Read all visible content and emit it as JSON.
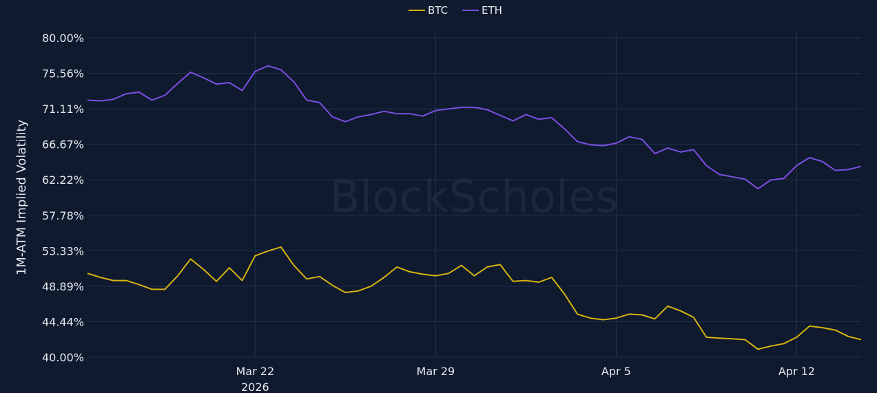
{
  "chart_data": {
    "type": "line",
    "ylabel": "1M-ATM Implied Volatility",
    "xlabel": "",
    "watermark": "BlockScholes",
    "ylim": [
      40,
      80
    ],
    "yticks": [
      "40.00%",
      "44.44%",
      "48.89%",
      "53.33%",
      "57.78%",
      "62.22%",
      "66.67%",
      "71.11%",
      "75.56%",
      "80.00%"
    ],
    "xlim": [
      "2026-03-15 12:00",
      "2026-04-14 12:00"
    ],
    "xticks": [
      {
        "date": "2026-03-22 00:00",
        "label": "Mar 22",
        "sublabel": "2026"
      },
      {
        "date": "2026-03-29 00:00",
        "label": "Mar 29"
      },
      {
        "date": "2026-04-05 00:00",
        "label": "Apr 5"
      },
      {
        "date": "2026-04-12 00:00",
        "label": "Apr 12"
      }
    ],
    "grid": true,
    "legend_position": "top-center",
    "background": "#0f1a2e",
    "x": [
      "2026-03-15 12:00",
      "2026-03-16 00:00",
      "2026-03-16 12:00",
      "2026-03-17 00:00",
      "2026-03-17 12:00",
      "2026-03-18 00:00",
      "2026-03-18 12:00",
      "2026-03-19 00:00",
      "2026-03-19 12:00",
      "2026-03-20 00:00",
      "2026-03-20 12:00",
      "2026-03-21 00:00",
      "2026-03-21 12:00",
      "2026-03-22 00:00",
      "2026-03-22 12:00",
      "2026-03-23 00:00",
      "2026-03-23 12:00",
      "2026-03-24 00:00",
      "2026-03-24 12:00",
      "2026-03-25 00:00",
      "2026-03-25 12:00",
      "2026-03-26 00:00",
      "2026-03-26 12:00",
      "2026-03-27 00:00",
      "2026-03-27 12:00",
      "2026-03-28 00:00",
      "2026-03-28 12:00",
      "2026-03-29 00:00",
      "2026-03-29 12:00",
      "2026-03-30 00:00",
      "2026-03-30 12:00",
      "2026-03-31 00:00",
      "2026-03-31 12:00",
      "2026-04-01 00:00",
      "2026-04-01 12:00",
      "2026-04-02 00:00",
      "2026-04-02 12:00",
      "2026-04-03 00:00",
      "2026-04-03 12:00",
      "2026-04-04 00:00",
      "2026-04-04 12:00",
      "2026-04-05 00:00",
      "2026-04-05 12:00",
      "2026-04-06 00:00",
      "2026-04-06 12:00",
      "2026-04-07 00:00",
      "2026-04-07 12:00",
      "2026-04-08 00:00",
      "2026-04-08 12:00",
      "2026-04-09 00:00",
      "2026-04-09 12:00",
      "2026-04-10 00:00",
      "2026-04-10 12:00",
      "2026-04-11 00:00",
      "2026-04-11 12:00",
      "2026-04-12 00:00",
      "2026-04-12 12:00",
      "2026-04-13 00:00",
      "2026-04-13 12:00",
      "2026-04-14 00:00",
      "2026-04-14 12:00"
    ],
    "series": [
      {
        "name": "BTC",
        "color": "#d9b310",
        "values": [
          50.5,
          50.0,
          49.6,
          49.6,
          49.1,
          48.5,
          48.5,
          50.2,
          52.3,
          51.0,
          49.5,
          51.2,
          49.6,
          52.7,
          53.3,
          53.8,
          51.5,
          49.8,
          50.1,
          49.0,
          48.1,
          48.3,
          48.9,
          50.0,
          51.3,
          50.7,
          50.4,
          50.2,
          50.5,
          51.5,
          50.2,
          51.3,
          51.6,
          49.5,
          49.6,
          49.4,
          50.0,
          47.9,
          45.4,
          44.9,
          44.7,
          44.9,
          45.4,
          45.3,
          44.8,
          46.4,
          45.8,
          45.0,
          42.5,
          42.4,
          42.3,
          42.2,
          41.0,
          41.4,
          41.7,
          42.5,
          43.9,
          43.7,
          43.4,
          42.6,
          42.2
        ]
      },
      {
        "name": "ETH",
        "color": "#7b4fe3",
        "values": [
          72.2,
          72.1,
          72.3,
          73.0,
          73.2,
          72.2,
          72.8,
          74.3,
          75.7,
          75.0,
          74.2,
          74.4,
          73.4,
          75.8,
          76.5,
          76.0,
          74.5,
          72.2,
          71.9,
          70.1,
          69.5,
          70.1,
          70.4,
          70.8,
          70.5,
          70.5,
          70.2,
          70.9,
          71.1,
          71.3,
          71.3,
          71.0,
          70.3,
          69.6,
          70.4,
          69.8,
          70.0,
          68.6,
          67.0,
          66.6,
          66.5,
          66.8,
          67.6,
          67.3,
          65.5,
          66.2,
          65.7,
          66.0,
          64.0,
          62.9,
          62.6,
          62.3,
          61.1,
          62.2,
          62.4,
          64.0,
          65.0,
          64.5,
          63.4,
          63.5,
          63.9
        ]
      }
    ]
  }
}
